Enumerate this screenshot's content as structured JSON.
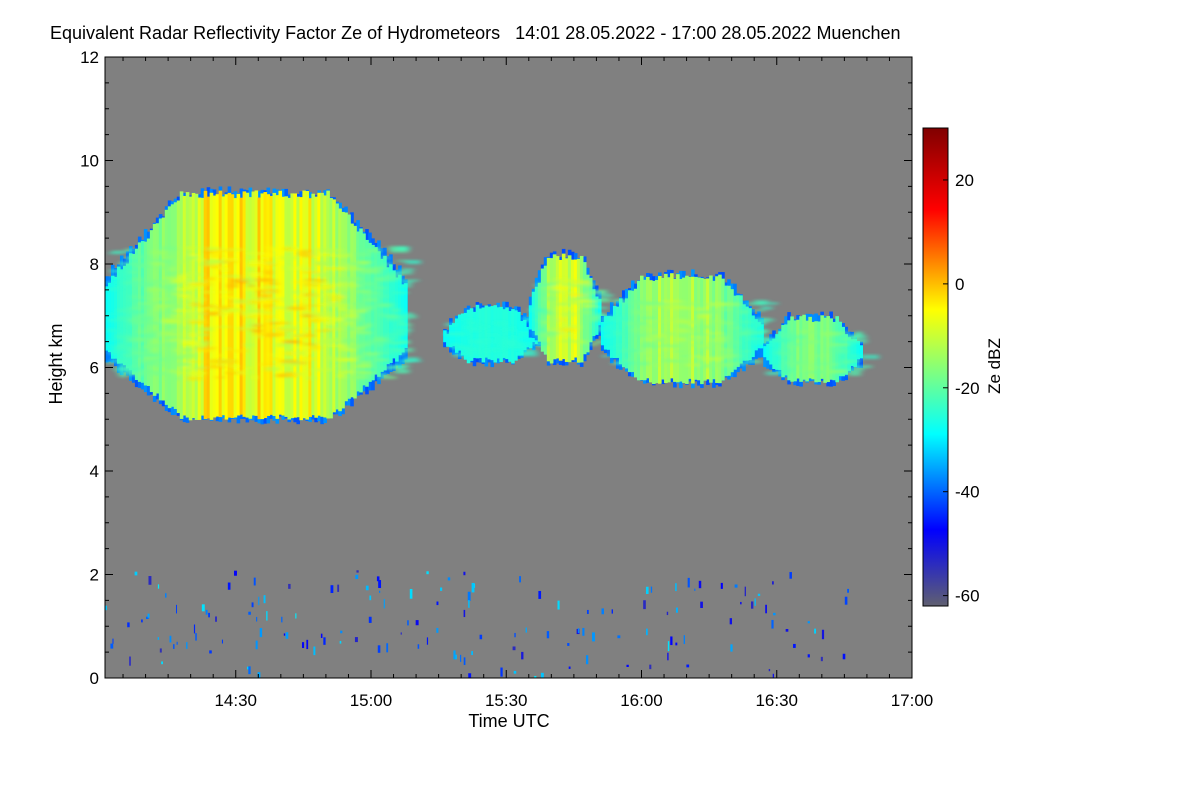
{
  "chart_data": {
    "type": "heatmap",
    "title": "Equivalent Radar Reflectivity Factor Ze of Hydrometeors   14:01 28.05.2022 - 17:00 28.05.2022 Muenchen",
    "xlabel": "Time UTC",
    "ylabel": "Height km",
    "x_ticks": [
      "14:30",
      "15:00",
      "15:30",
      "16:00",
      "16:30",
      "17:00"
    ],
    "x_tick_minutes": [
      870,
      900,
      930,
      960,
      990,
      1020
    ],
    "xlim_minutes": [
      841,
      1020
    ],
    "y_ticks": [
      0,
      2,
      4,
      6,
      8,
      10,
      12
    ],
    "ylim": [
      0,
      12
    ],
    "colorbar": {
      "label": "Ze dBZ",
      "ticks": [
        20,
        0,
        -20,
        -40,
        -60
      ],
      "range": [
        -62,
        30
      ]
    },
    "colors": {
      "background_no_echo": "#808080",
      "colormap": [
        "#606070",
        "#0000ff",
        "#00ffff",
        "#ffff00",
        "#ff0000",
        "#800000"
      ]
    },
    "echo_regions": [
      {
        "t_start": 841,
        "t_end": 908,
        "base_km": 4.9,
        "top_km": 9.5,
        "max_dbz": 0,
        "layer": "upper cloud (anvil)"
      },
      {
        "t_start": 916,
        "t_end": 937,
        "base_km": 6.0,
        "top_km": 7.3,
        "max_dbz": -25,
        "layer": "upper cloud fragments"
      },
      {
        "t_start": 935,
        "t_end": 951,
        "base_km": 6.0,
        "top_km": 8.3,
        "max_dbz": -5,
        "layer": "upper cloud"
      },
      {
        "t_start": 951,
        "t_end": 987,
        "base_km": 5.6,
        "top_km": 7.9,
        "max_dbz": -10,
        "layer": "upper cloud"
      },
      {
        "t_start": 987,
        "t_end": 1009,
        "base_km": 5.6,
        "top_km": 7.1,
        "max_dbz": -15,
        "layer": "upper cloud"
      },
      {
        "t_start": 841,
        "t_end": 1007,
        "base_km": 0.0,
        "top_km": 2.1,
        "max_dbz": -30,
        "layer": "low-level sparse clutter"
      }
    ]
  }
}
